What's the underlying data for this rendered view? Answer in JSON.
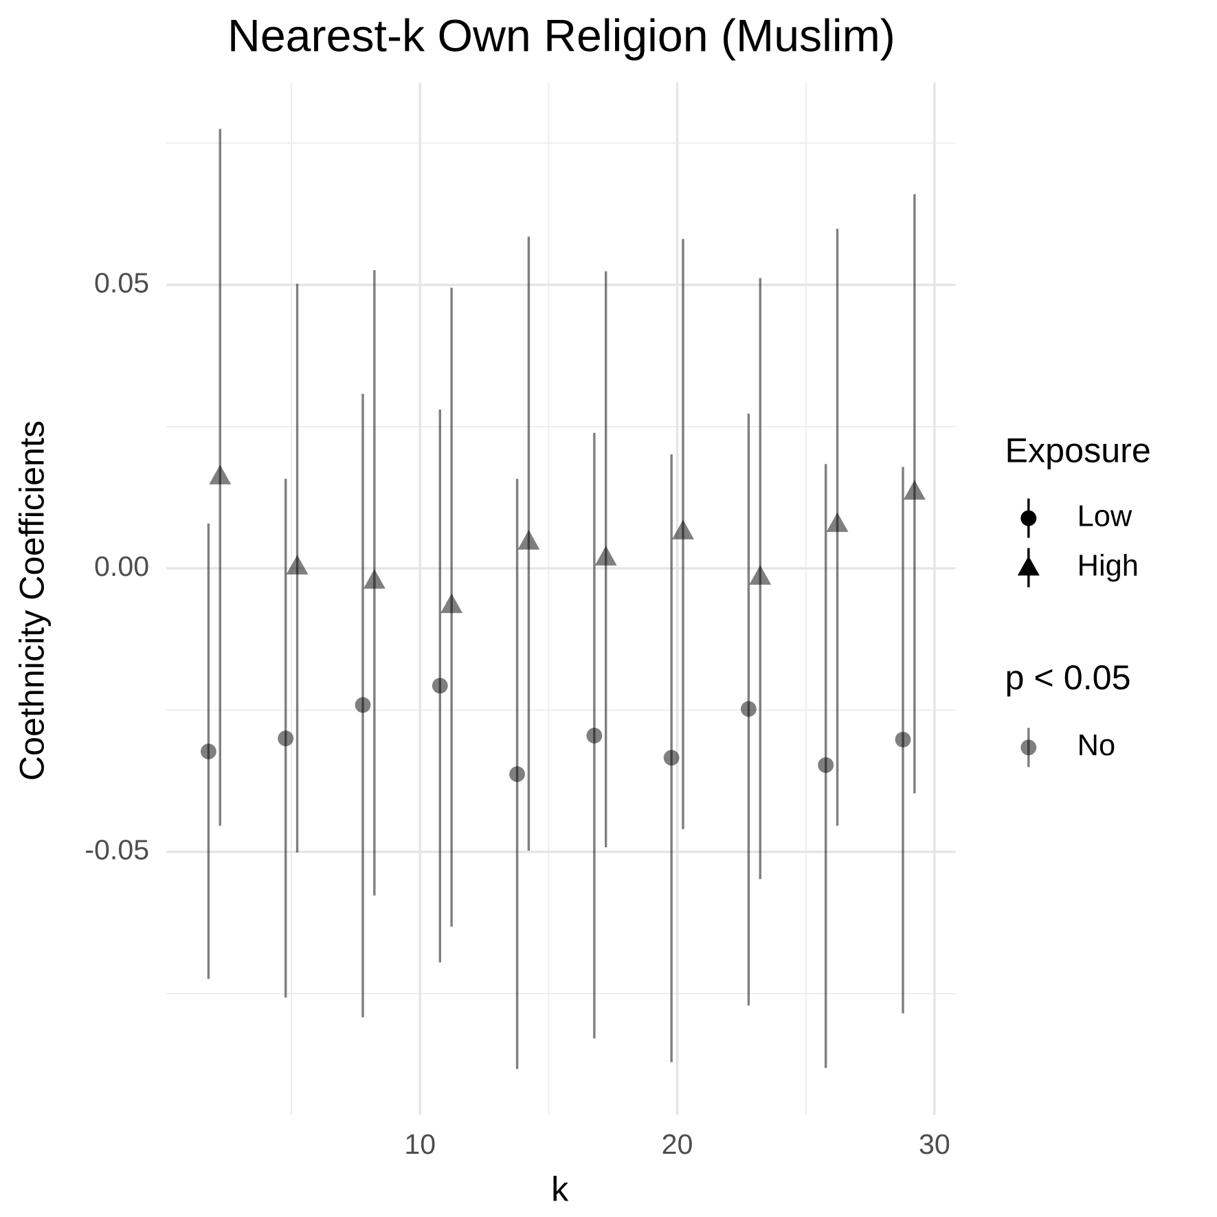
{
  "chart_data": {
    "type": "errorbar",
    "title": "Nearest-k Own Religion (Muslim)",
    "x_label": "k",
    "y_label": "Coethnicity Coefficients",
    "x": [
      2,
      5,
      8,
      11,
      14,
      17,
      20,
      23,
      26,
      29
    ],
    "xlim": [
      0.14,
      30.82
    ],
    "xticks": [
      10,
      20,
      30
    ],
    "x_minor_ticks": [
      5,
      15,
      25
    ],
    "ylim": [
      -0.0964,
      0.0857
    ],
    "yticks": [
      {
        "value": -0.05,
        "label": "-0.05"
      },
      {
        "value": 0,
        "label": "0.00"
      },
      {
        "value": 0.05,
        "label": "0.05"
      }
    ],
    "y_minor_ticks": [
      -0.075,
      -0.025,
      0.025,
      0.075
    ],
    "grid": true,
    "legend_title": "Exposure",
    "series": [
      {
        "name": "Low",
        "marker": "circle",
        "color": "#000000",
        "values": [
          -0.0323,
          -0.03,
          -0.0241,
          -0.0207,
          -0.0363,
          -0.0295,
          -0.0334,
          -0.0248,
          -0.0347,
          -0.0302
        ],
        "lower": [
          -0.0724,
          -0.0757,
          -0.0792,
          -0.0695,
          -0.0883,
          -0.0829,
          -0.0871,
          -0.0771,
          -0.0881,
          -0.0785
        ],
        "upper": [
          0.0079,
          0.0158,
          0.0308,
          0.028,
          0.0158,
          0.0239,
          0.0201,
          0.0273,
          0.0184,
          0.0179
        ]
      },
      {
        "name": "High",
        "marker": "triangle",
        "color": "#000000",
        "values": [
          0.0162,
          0.0003,
          -0.0022,
          -0.0065,
          0.0047,
          0.0019,
          0.0065,
          -0.0015,
          0.0078,
          0.0135
        ],
        "lower": [
          -0.0454,
          -0.0501,
          -0.0577,
          -0.0632,
          -0.0498,
          -0.0492,
          -0.046,
          -0.0548,
          -0.0454,
          -0.0397
        ],
        "upper": [
          0.0775,
          0.0502,
          0.0526,
          0.0495,
          0.0585,
          0.0524,
          0.0581,
          0.0512,
          0.0599,
          0.066
        ]
      }
    ],
    "alpha_legend": {
      "title": "p < 0.05",
      "labels": [
        "No"
      ],
      "alpha": 0.5
    }
  }
}
